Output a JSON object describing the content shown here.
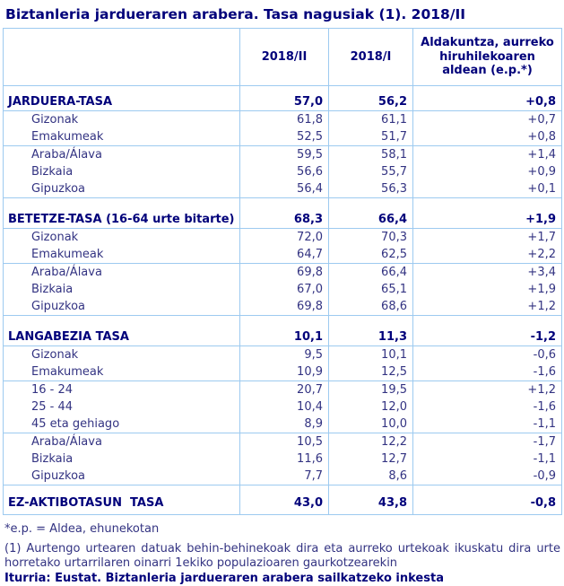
{
  "page": {
    "title": "Biztanleria jardueraren arabera. Tasa nagusiak (1). 2018/II"
  },
  "colors": {
    "title_navy": "#00007a",
    "body_text": "#333382",
    "table_border": "#9dcaf0",
    "background": "#ffffff"
  },
  "table": {
    "col_headers": {
      "period_current": "2018/II",
      "period_previous": "2018/I",
      "change": "Aldakuntza, aurreko hiruhilekoaren aldean (e.p.*)"
    },
    "sections": [
      {
        "header": {
          "label": "JARDUERA-TASA",
          "v1": "57,0",
          "v2": "56,2",
          "v3": "+0,8"
        },
        "rows": [
          {
            "label": "Gizonak",
            "v1": "61,8",
            "v2": "61,1",
            "v3": "+0,7"
          },
          {
            "label": "Emakumeak",
            "v1": "52,5",
            "v2": "51,7",
            "v3": "+0,8"
          },
          {
            "label": "Araba/Álava",
            "v1": "59,5",
            "v2": "58,1",
            "v3": "+1,4"
          },
          {
            "label": "Bizkaia",
            "v1": "56,6",
            "v2": "55,7",
            "v3": "+0,9"
          },
          {
            "label": "Gipuzkoa",
            "v1": "56,4",
            "v2": "56,3",
            "v3": "+0,1"
          }
        ]
      },
      {
        "header": {
          "label": "BETETZE-TASA (16-64 urte bitarte)",
          "v1": "68,3",
          "v2": "66,4",
          "v3": "+1,9"
        },
        "rows": [
          {
            "label": "Gizonak",
            "v1": "72,0",
            "v2": "70,3",
            "v3": "+1,7"
          },
          {
            "label": "Emakumeak",
            "v1": "64,7",
            "v2": "62,5",
            "v3": "+2,2"
          },
          {
            "label": "Araba/Álava",
            "v1": "69,8",
            "v2": "66,4",
            "v3": "+3,4"
          },
          {
            "label": "Bizkaia",
            "v1": "67,0",
            "v2": "65,1",
            "v3": "+1,9"
          },
          {
            "label": "Gipuzkoa",
            "v1": "69,8",
            "v2": "68,6",
            "v3": "+1,2"
          }
        ]
      },
      {
        "header": {
          "label": "LANGABEZIA TASA",
          "v1": "10,1",
          "v2": "11,3",
          "v3": "-1,2"
        },
        "rows": [
          {
            "label": "Gizonak",
            "v1": "9,5",
            "v2": "10,1",
            "v3": "-0,6"
          },
          {
            "label": "Emakumeak",
            "v1": "10,9",
            "v2": "12,5",
            "v3": "-1,6"
          },
          {
            "label": "16 - 24",
            "v1": "20,7",
            "v2": "19,5",
            "v3": "+1,2"
          },
          {
            "label": "25 - 44",
            "v1": "10,4",
            "v2": "12,0",
            "v3": "-1,6"
          },
          {
            "label": "45 eta gehiago",
            "v1": "8,9",
            "v2": "10,0",
            "v3": "-1,1"
          },
          {
            "label": "Araba/Álava",
            "v1": "10,5",
            "v2": "12,2",
            "v3": "-1,7"
          },
          {
            "label": "Bizkaia",
            "v1": "11,6",
            "v2": "12,7",
            "v3": "-1,1"
          },
          {
            "label": "Gipuzkoa",
            "v1": "7,7",
            "v2": "8,6",
            "v3": "-0,9"
          }
        ]
      },
      {
        "header": {
          "label": "EZ-AKTIBOTASUN  TASA",
          "v1": "43,0",
          "v2": "43,8",
          "v3": "-0,8"
        },
        "rows": []
      }
    ]
  },
  "footnotes": {
    "ep_note": "*e.p. = Aldea, ehunekotan",
    "note1": "(1) Aurtengo urtearen datuak behin-behinekoak dira eta aurreko urtekoak ikuskatu dira urte horretako urtarrilaren oinarri 1ekiko populazioaren gaurkotzearekin",
    "source": "Iturria: Eustat. Biztanleria jardueraren arabera sailkatzeko inkesta"
  }
}
